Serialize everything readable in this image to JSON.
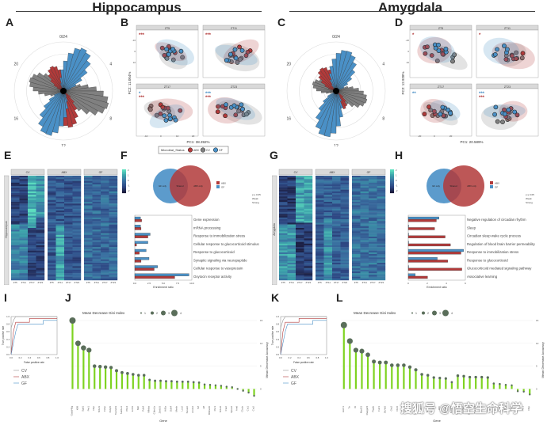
{
  "sections": {
    "left_title": "Hippocampus",
    "right_title": "Amygdala"
  },
  "panel_labels": [
    "A",
    "B",
    "C",
    "D",
    "E",
    "F",
    "G",
    "H",
    "I",
    "J",
    "K",
    "L"
  ],
  "colors": {
    "ABX": "#b23a3a",
    "CV": "#808080",
    "GF": "#4a90c6",
    "lollipop": "#7ed321",
    "heat_low": "#1a1a3a",
    "heat_mid": "#3a6ea0",
    "heat_high": "#5ee0c0"
  },
  "chart_data": [
    {
      "id": "A",
      "type": "polar-bar",
      "title": "Hippocampus rose plot",
      "angle_labels": [
        "0/24",
        "4",
        "8",
        "12",
        "16",
        "20"
      ],
      "series": [
        {
          "name": "GF",
          "peak_hours": [
            1,
            13
          ]
        },
        {
          "name": "CV",
          "peak_hours": [
            7,
            19
          ]
        },
        {
          "name": "ABX",
          "peak_hours": [
            10,
            22
          ]
        }
      ]
    },
    {
      "id": "B",
      "type": "scatter",
      "facets": [
        "ZT5",
        "ZT11",
        "ZT17",
        "ZT23"
      ],
      "xlabel": "PC1: 38.392%",
      "ylabel": "PC2: 11.004%",
      "legend_title": "Microbial_Status",
      "legend": [
        "ABX",
        "CV",
        "GF"
      ],
      "significance": {
        "ZT5": [
          "***"
        ],
        "ZT11": [
          "***"
        ],
        "ZT17": [
          "*",
          "***"
        ],
        "ZT23": [
          "***",
          "***"
        ]
      }
    },
    {
      "id": "C",
      "type": "polar-bar",
      "title": "Amygdala rose plot",
      "angle_labels": [
        "0/24",
        "4",
        "8",
        "12",
        "16",
        "20"
      ]
    },
    {
      "id": "D",
      "type": "scatter",
      "facets": [
        "ZT5",
        "ZT11",
        "ZT17",
        "ZT23"
      ],
      "xlabel": "PC1: 20.589%",
      "ylabel": "PC2: 12.928%",
      "legend_title": "Microbial_Status",
      "legend": [
        "ABX",
        "CV",
        "GF"
      ],
      "significance": {
        "ZT5": [
          "*"
        ],
        "ZT11": [
          "*"
        ],
        "ZT17": [
          "**"
        ],
        "ZT23": [
          "***",
          "***"
        ]
      }
    },
    {
      "id": "E",
      "type": "heatmap",
      "groups": [
        "CV",
        "ABX",
        "GF"
      ],
      "columns": [
        "ZT5",
        "ZT11",
        "ZT17",
        "ZT23"
      ],
      "row_label": "Hippocampus",
      "scale": [
        -2,
        -1,
        0,
        1,
        2
      ]
    },
    {
      "id": "F",
      "type": "bar",
      "venn": {
        "sets": [
          "ABX",
          "GF"
        ],
        "regions": [
          "GF only",
          "Shared",
          "ABX only"
        ]
      },
      "legend": [
        "p ≤ 0.05",
        "Weak",
        "Strong"
      ],
      "categories": [
        "Gene expression",
        "mRNA processing",
        "Response to immobilization stress",
        "Cellular response to glucocorticoid stimulus",
        "Response to glucocorticoid",
        "Synaptic signaling via neuropeptide",
        "Cellular response to vasopressin",
        "Oxytocin receptor activity"
      ],
      "series": [
        {
          "name": "GF",
          "values": [
            1.0,
            1.0,
            2.7,
            2.3,
            2.0,
            2.5,
            4.0,
            9.5
          ]
        },
        {
          "name": "ABX",
          "values": [
            1.2,
            1.1,
            2.3,
            0.3,
            0.8,
            1.1,
            3.4,
            7.0
          ]
        }
      ],
      "xlabel": "Enrichment ratio",
      "xticks": [
        "0.0",
        "2.5",
        "5.0",
        "7.5",
        "10.0"
      ],
      "xlim": [
        0,
        10
      ]
    },
    {
      "id": "G",
      "type": "heatmap",
      "groups": [
        "CV",
        "ABX",
        "GF"
      ],
      "columns": [
        "ZT5",
        "ZT11",
        "ZT17",
        "ZT23"
      ],
      "row_label": "Amygdala",
      "scale": [
        -2,
        -1,
        0,
        1,
        2
      ]
    },
    {
      "id": "H",
      "type": "bar",
      "venn": {
        "sets": [
          "ABX",
          "GF"
        ],
        "regions": [
          "GF only",
          "Shared",
          "ABX only"
        ]
      },
      "legend": [
        "p ≤ 0.05",
        "Weak",
        "Strong"
      ],
      "categories": [
        "Negative regulation of circadian rhythm",
        "Sleep",
        "Circadian sleep wake cycle process",
        "Regulation of blood brain barrier permeability",
        "Response to immobilization stress",
        "Response to glucocorticoid",
        "Glucocorticoid mediated signaling pathway",
        "Associative learning"
      ],
      "series": [
        {
          "name": "GF",
          "values": [
            3.5,
            0,
            0,
            0,
            6.3,
            3.3,
            0,
            0.8
          ]
        },
        {
          "name": "ABX",
          "values": [
            3.2,
            3.0,
            4.2,
            4.8,
            6.0,
            4.5,
            6.1,
            2.2
          ]
        }
      ],
      "xlabel": "Enrichment ratio",
      "xticks": [
        "0",
        "2",
        "4",
        "6"
      ],
      "xlim": [
        0,
        6.5
      ]
    },
    {
      "id": "I",
      "type": "line",
      "xlabel": "False positive rate",
      "ylabel": "True positive rate",
      "xticks": [
        "0.0",
        "0.2",
        "0.4",
        "0.6",
        "0.8",
        "1.0"
      ],
      "yticks": [
        "0.0",
        "0.2",
        "0.4",
        "0.6",
        "0.8",
        "1.0"
      ],
      "legend": [
        "CV",
        "ABX",
        "GF"
      ]
    },
    {
      "id": "J",
      "type": "lollipop",
      "xlabel": "Gene",
      "ylabel": "Mean Decrease Accuracy",
      "size_legend_title": "Mean Decrease Gini Index",
      "size_legend": [
        "1",
        "2",
        "3",
        "4"
      ],
      "categories": [
        "Gadd45g",
        "Klf9",
        "Sgk1",
        "Per1",
        "Dbp",
        "Nr1d1",
        "Cirbp",
        "Fkbp5",
        "Tsc22d3",
        "Sult1a1",
        "Plin4",
        "Errfi1",
        "Mt2",
        "Pdk4",
        "Nfkbia",
        "Cdkn1a",
        "Zbtb16",
        "Hif3a",
        "Ddit4",
        "Mertk",
        "Lcn2",
        "Sox2ot",
        "Arrdc2",
        "Tef",
        "Hlf",
        "Bhlhe40",
        "Per3",
        "Nr1d2",
        "Ciart",
        "Npas2",
        "Arntl",
        "Clock",
        "Cry1",
        "Cry2"
      ],
      "values": [
        15,
        10,
        9,
        8.5,
        5,
        4.9,
        4.8,
        4.7,
        4,
        3.6,
        3.4,
        3.2,
        3,
        3,
        2,
        1.8,
        1.8,
        1.7,
        1.7,
        1.6,
        1.6,
        1.6,
        1.5,
        1.4,
        1,
        0.9,
        0.8,
        0.7,
        0.5,
        0.4,
        0,
        -0.4,
        -0.8,
        -1.5
      ],
      "ylim": [
        -2,
        15
      ]
    },
    {
      "id": "K",
      "type": "line",
      "xlabel": "False positive rate",
      "ylabel": "True positive rate",
      "xticks": [
        "0.0",
        "0.2",
        "0.4",
        "0.6",
        "0.8",
        "1.0"
      ],
      "yticks": [
        "0.0",
        "0.2",
        "0.4",
        "0.6",
        "0.8",
        "1.0"
      ],
      "legend": [
        "CV",
        "ABX",
        "GF"
      ]
    },
    {
      "id": "L",
      "type": "lollipop",
      "xlabel": "Gene",
      "ylabel": "Mean Decrease Accuracy",
      "size_legend_title": "Mean Decrease Gini Index",
      "size_legend": [
        "1",
        "2",
        "3",
        "4"
      ],
      "categories": [
        "Hcrtr1",
        "Ttr",
        "Kl",
        "Mrpl33",
        "Rapgef4",
        "Ptgds",
        "Folr1",
        "Slc4a5",
        "Otx2",
        "Clic6",
        "Kcne2",
        "F5",
        "Sostdc1",
        "Cldn1",
        "Igfbp2",
        "Aqp1",
        "Prlr",
        "Enpp2",
        "Kcnj13",
        "Slc13a4",
        "Col8a1",
        "Sema3b",
        "Calml4",
        "Cox8b",
        "Msx1",
        "Wfikkn2",
        "Crym",
        "Dmp1",
        "Sgk1",
        "Fkbp5",
        "Per1",
        "Dbp"
      ],
      "values": [
        14,
        10.5,
        8.5,
        8.3,
        7.5,
        6,
        5.8,
        5.8,
        5.2,
        5.2,
        5.2,
        4.8,
        4.2,
        3.2,
        3,
        2.5,
        2.4,
        2.3,
        1.5,
        2.9,
        2.8,
        2.6,
        2.6,
        2.6,
        2.5,
        1.2,
        1.1,
        0.9,
        0.8,
        -0.5,
        -0.6,
        -1.2
      ],
      "ylim": [
        -2,
        15
      ]
    }
  ],
  "axes": {
    "B_xticks": [
      "-10",
      "0",
      "10",
      "20"
    ],
    "B_yticks": [
      "-10",
      "0",
      "10"
    ],
    "D_xticks": [
      "-20",
      "0",
      "20"
    ],
    "D_yticks": [
      "-20",
      "0",
      "20"
    ]
  },
  "watermark": "搜狐号 @悟空生命科学"
}
